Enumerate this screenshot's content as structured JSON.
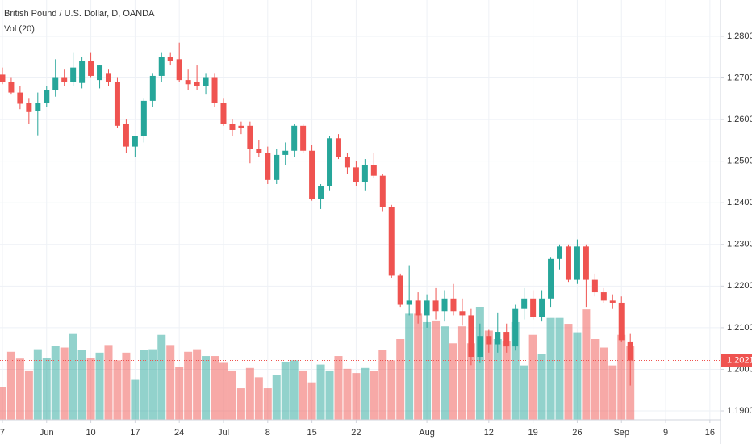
{
  "chart_data": {
    "type": "candlestick",
    "title": "British Pound / U.S. Dollar, D, OANDA",
    "subtitle": "Vol (20)",
    "up_color": "#26a69a",
    "down_color": "#ef5350",
    "grid": true,
    "last_price": 1.20212,
    "ylim": [
      1.18787,
      1.28872
    ],
    "xlim": [
      -0.27,
      81.2
    ],
    "yticks": [
      {
        "value": 1.28,
        "label": "1.28000"
      },
      {
        "value": 1.27,
        "label": "1.27000"
      },
      {
        "value": 1.26,
        "label": "1.26000"
      },
      {
        "value": 1.25,
        "label": "1.25000"
      },
      {
        "value": 1.24,
        "label": "1.24000"
      },
      {
        "value": 1.23,
        "label": "1.23000"
      },
      {
        "value": 1.22,
        "label": "1.22000"
      },
      {
        "value": 1.21,
        "label": "1.21000"
      },
      {
        "value": 1.2,
        "label": "1.20000"
      },
      {
        "value": 1.19,
        "label": "1.19000"
      }
    ],
    "xticks": [
      {
        "value": 0,
        "label": "7"
      },
      {
        "value": 5,
        "label": "Jun"
      },
      {
        "value": 10,
        "label": "10"
      },
      {
        "value": 15,
        "label": "17"
      },
      {
        "value": 20,
        "label": "24"
      },
      {
        "value": 25,
        "label": "Jul"
      },
      {
        "value": 30,
        "label": "8"
      },
      {
        "value": 35,
        "label": "15"
      },
      {
        "value": 40,
        "label": "22"
      },
      {
        "value": 48,
        "label": "Aug"
      },
      {
        "value": 55,
        "label": "12"
      },
      {
        "value": 60,
        "label": "19"
      },
      {
        "value": 65,
        "label": "26"
      },
      {
        "value": 70,
        "label": "Sep"
      },
      {
        "value": 75,
        "label": "9"
      },
      {
        "value": 80,
        "label": "16"
      }
    ],
    "open": [
      1.2708,
      1.269,
      1.2665,
      1.264,
      1.262,
      1.264,
      1.267,
      1.27,
      1.269,
      1.2688,
      1.274,
      1.2695,
      1.271,
      1.269,
      1.259,
      1.2535,
      1.256,
      1.2645,
      1.2705,
      1.275,
      1.2745,
      1.2695,
      1.269,
      1.268,
      1.27,
      1.264,
      1.259,
      1.2585,
      1.2585,
      1.253,
      1.252,
      1.2455,
      1.2515,
      1.2525,
      1.2585,
      1.2525,
      1.241,
      1.244,
      1.2555,
      1.251,
      1.2485,
      1.245,
      1.249,
      1.2465,
      1.239,
      1.2225,
      1.2155,
      1.2165,
      1.213,
      1.2165,
      1.214,
      1.217,
      1.214,
      1.213,
      1.203,
      1.208,
      1.206,
      1.209,
      1.2055,
      1.2145,
      1.217,
      1.2125,
      1.217,
      1.2265,
      1.2295,
      1.2215,
      1.2295,
      1.2215,
      1.2185,
      1.2165,
      1.216,
      1.2065
    ],
    "high": [
      1.2725,
      1.27,
      1.268,
      1.265,
      1.2665,
      1.268,
      1.2745,
      1.272,
      1.276,
      1.275,
      1.276,
      1.273,
      1.272,
      1.27,
      1.26,
      1.2555,
      1.265,
      1.271,
      1.276,
      1.276,
      1.2785,
      1.272,
      1.273,
      1.271,
      1.271,
      1.265,
      1.26,
      1.2595,
      1.2595,
      1.255,
      1.2535,
      1.253,
      1.2545,
      1.259,
      1.259,
      1.254,
      1.2445,
      1.256,
      1.2565,
      1.252,
      1.25,
      1.2505,
      1.252,
      1.247,
      1.2395,
      1.223,
      1.225,
      1.2185,
      1.218,
      1.2195,
      1.219,
      1.2205,
      1.217,
      1.2145,
      1.211,
      1.2095,
      1.2135,
      1.211,
      1.2155,
      1.2195,
      1.219,
      1.219,
      1.227,
      1.23,
      1.23,
      1.2312,
      1.23,
      1.223,
      1.2195,
      1.218,
      1.2175,
      1.2085
    ],
    "low": [
      1.2685,
      1.266,
      1.2625,
      1.259,
      1.2562,
      1.263,
      1.2655,
      1.268,
      1.268,
      1.2675,
      1.27,
      1.2675,
      1.268,
      1.258,
      1.252,
      1.251,
      1.2545,
      1.263,
      1.269,
      1.273,
      1.269,
      1.267,
      1.267,
      1.266,
      1.263,
      1.2585,
      1.256,
      1.2565,
      1.2495,
      1.251,
      1.2445,
      1.2445,
      1.249,
      1.251,
      1.252,
      1.2405,
      1.2385,
      1.243,
      1.2505,
      1.247,
      1.244,
      1.243,
      1.246,
      1.238,
      1.222,
      1.215,
      1.213,
      1.211,
      1.21,
      1.212,
      1.2115,
      1.213,
      1.2105,
      1.201,
      1.2015,
      1.204,
      1.204,
      1.204,
      1.2045,
      1.212,
      1.212,
      1.2115,
      1.215,
      1.224,
      1.221,
      1.2205,
      1.215,
      1.2175,
      1.216,
      1.2145,
      1.2065,
      1.1961
    ],
    "close": [
      1.269,
      1.2665,
      1.2638,
      1.2618,
      1.264,
      1.267,
      1.27,
      1.269,
      1.2725,
      1.274,
      1.2705,
      1.273,
      1.269,
      1.2585,
      1.2535,
      1.256,
      1.2645,
      1.2705,
      1.275,
      1.274,
      1.2695,
      1.2685,
      1.268,
      1.27,
      1.264,
      1.259,
      1.2575,
      1.258,
      1.253,
      1.252,
      1.2455,
      1.2515,
      1.2525,
      1.2585,
      1.2525,
      1.241,
      1.244,
      1.2555,
      1.251,
      1.2485,
      1.245,
      1.249,
      1.2465,
      1.239,
      1.2225,
      1.2155,
      1.2165,
      1.213,
      1.2165,
      1.214,
      1.217,
      1.214,
      1.213,
      1.203,
      1.208,
      1.206,
      1.209,
      1.2055,
      1.2145,
      1.217,
      1.2125,
      1.217,
      1.2265,
      1.2295,
      1.2215,
      1.2295,
      1.2215,
      1.2185,
      1.2165,
      1.216,
      1.207,
      1.20212
    ],
    "volume": [
      38,
      80,
      72,
      58,
      83,
      73,
      87,
      85,
      101,
      82,
      73,
      79,
      88,
      70,
      79,
      47,
      82,
      83,
      100,
      88,
      62,
      80,
      83,
      75,
      75,
      67,
      58,
      37,
      61,
      50,
      37,
      53,
      68,
      70,
      58,
      44,
      65,
      58,
      75,
      60,
      55,
      61,
      57,
      82,
      70,
      95,
      125,
      125,
      115,
      116,
      110,
      90,
      110,
      90,
      133,
      105,
      95,
      93,
      115,
      64,
      100,
      77,
      120,
      120,
      113,
      103,
      130,
      95,
      85,
      64,
      100,
      87
    ]
  }
}
